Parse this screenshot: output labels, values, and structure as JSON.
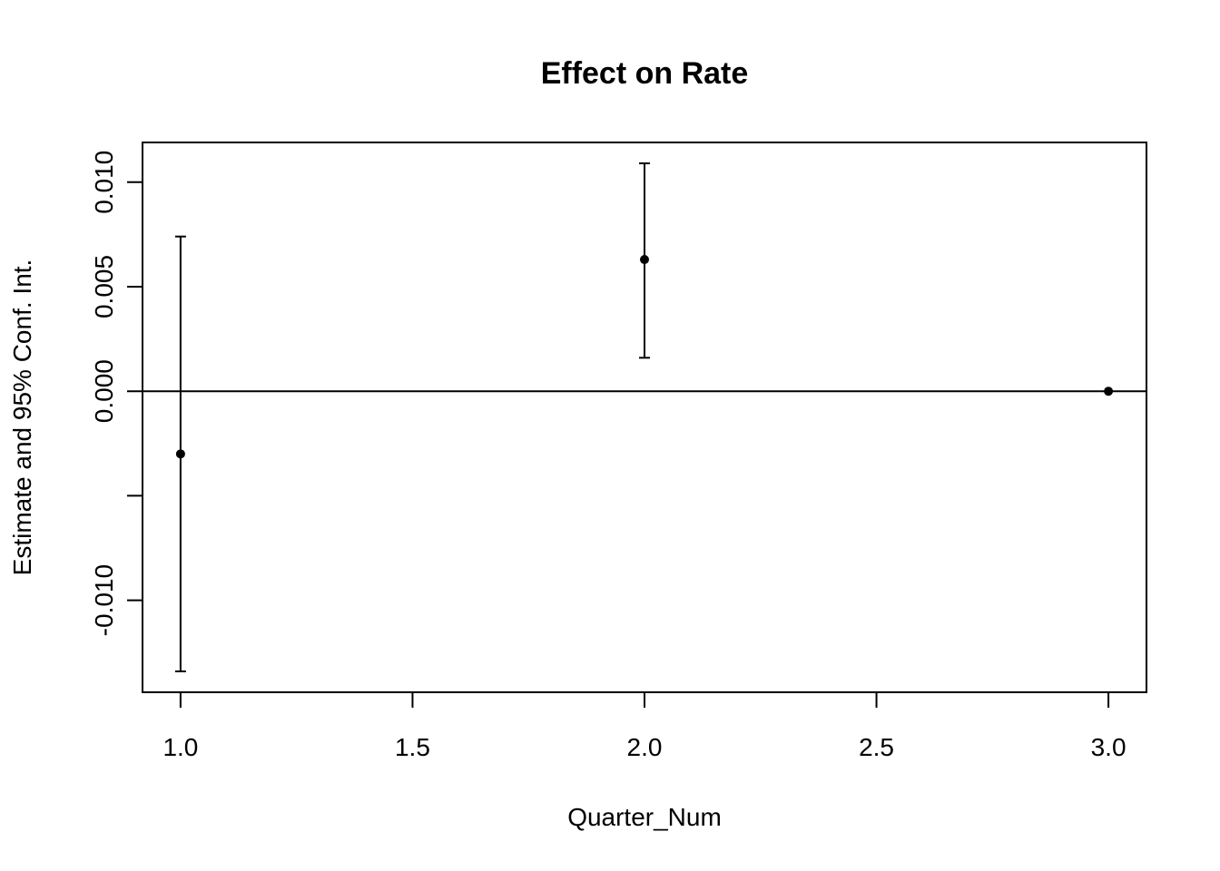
{
  "chart_data": {
    "type": "scatter",
    "title": "Effect on Rate",
    "xlabel": "Quarter_Num",
    "ylabel": "Estimate and 95% Conf. Int.",
    "xlim": [
      0.918,
      3.082
    ],
    "ylim": [
      -0.0144,
      0.0119
    ],
    "x_ticks": [
      1.0,
      1.5,
      2.0,
      2.5,
      3.0
    ],
    "x_tick_labels": [
      "1.0",
      "1.5",
      "2.0",
      "2.5",
      "3.0"
    ],
    "y_ticks": [
      -0.01,
      -0.005,
      0.0,
      0.005,
      0.01
    ],
    "y_tick_labels": [
      "-0.010",
      "",
      "0.000",
      "0.005",
      "0.010"
    ],
    "reference_line_y": 0,
    "grid": false,
    "legend": "none",
    "colors": {
      "marks": "#000000",
      "background": "#ffffff"
    },
    "points": [
      {
        "x": 1,
        "estimate": -0.003,
        "lower": -0.0134,
        "upper": 0.0074
      },
      {
        "x": 2,
        "estimate": 0.0063,
        "lower": 0.0016,
        "upper": 0.0109
      },
      {
        "x": 3,
        "estimate": 0.0,
        "lower": 0.0,
        "upper": 0.0
      }
    ]
  }
}
